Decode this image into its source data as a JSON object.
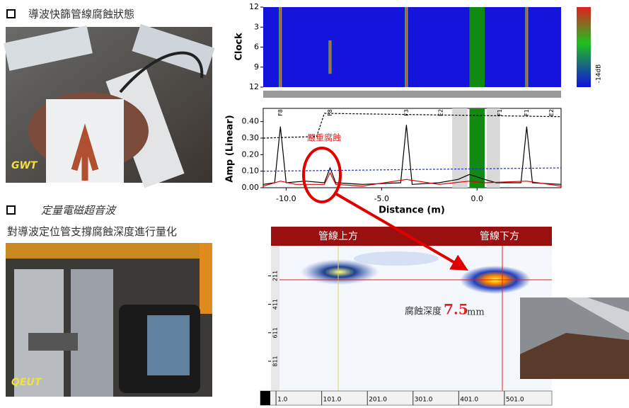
{
  "sections": [
    {
      "title": "導波快篩管線腐蝕狀態",
      "photo_label": "GWT"
    },
    {
      "title": "定量電磁超音波",
      "subtitle": "對導波定位管支撐腐蝕深度進行量化",
      "photo_label": "QEUT"
    }
  ],
  "chart_data": [
    {
      "type": "heatmap",
      "ylabel": "Clock",
      "colorbar_label": "-14dB",
      "xlim": [
        -11.2,
        4.4
      ],
      "ylim": [
        0,
        12
      ],
      "yticks": [
        {
          "value": 0,
          "label": "12"
        },
        3,
        6,
        9,
        12
      ],
      "indications": {
        "x": [
          -10.3,
          -7.7,
          -3.7,
          2.6
        ],
        "clock_from": [
          0,
          5,
          0,
          0
        ],
        "clock_to": [
          12,
          10,
          12,
          12
        ]
      },
      "green_band": [
        -0.4,
        0.4
      ]
    },
    {
      "type": "line",
      "ylabel": "Amp (Linear)",
      "xlabel": "Distance (m)",
      "xlim": [
        -11.2,
        4.4
      ],
      "ylim": [
        0,
        0.48
      ],
      "xticks": [
        {
          "value": -10,
          "label": "-10.0"
        },
        {
          "value": -5,
          "label": "-5.0"
        },
        {
          "value": 0,
          "label": "0.0"
        }
      ],
      "yticks": [
        {
          "value": 0,
          "label": "0.00"
        },
        {
          "value": 0.1,
          "label": "0.10"
        },
        {
          "value": 0.2,
          "label": "0.20"
        },
        {
          "value": 0.3,
          "label": "0.30"
        },
        {
          "value": 0.4,
          "label": "0.40"
        }
      ],
      "green_band": [
        -0.4,
        0.4
      ],
      "gray_bands": [
        [
          -1.3,
          -0.5
        ],
        [
          0.5,
          1.2
        ]
      ],
      "feature_labels": {
        "x": [
          -10.3,
          -7.7,
          -3.7,
          -1.9,
          1.2,
          2.6,
          3.9
        ],
        "labels": [
          "F8",
          "F8",
          "F3",
          "E2",
          "F1",
          "F1",
          "E2"
        ]
      },
      "annotation": {
        "text": "嚴重腐蝕",
        "x": -8.9,
        "y": 0.3
      },
      "series": [
        {
          "color": "#000000",
          "x": [
            -11.2,
            -10.6,
            -10.3,
            -10.0,
            -9.0,
            -8.0,
            -7.7,
            -7.4,
            -6.0,
            -4.0,
            -3.7,
            -3.4,
            -2.0,
            -1.0,
            -0.4,
            0.4,
            1.0,
            2.3,
            2.6,
            2.9,
            4.4
          ],
          "values": [
            0.02,
            0.03,
            0.37,
            0.03,
            0.04,
            0.03,
            0.12,
            0.03,
            0.02,
            0.03,
            0.38,
            0.02,
            0.03,
            0.05,
            0.08,
            0.05,
            0.03,
            0.03,
            0.37,
            0.03,
            0.02
          ]
        },
        {
          "color": "#e00000",
          "x": [
            -11.2,
            -10.3,
            -9.5,
            -8.0,
            -7.7,
            -7.4,
            -6.0,
            -3.7,
            -2.0,
            -0.4,
            0.4,
            2.6,
            4.4
          ],
          "values": [
            0.01,
            0.04,
            0.02,
            0.02,
            0.09,
            0.02,
            0.01,
            0.05,
            0.02,
            0.04,
            0.03,
            0.04,
            0.01
          ]
        },
        {
          "color": "#000000",
          "dash": true,
          "x": [
            -11.2,
            -8.4,
            -8.0,
            4.4
          ],
          "values": [
            0.3,
            0.31,
            0.45,
            0.43
          ]
        },
        {
          "color": "#2030d0",
          "dash": true,
          "x": [
            -11.2,
            4.4
          ],
          "values": [
            0.1,
            0.12
          ]
        }
      ]
    },
    {
      "type": "heatmap",
      "header_left": "管線上方",
      "header_right": "管線下方",
      "depth_label": "腐蝕深度",
      "depth_value": "7.5",
      "depth_unit": "mm",
      "xlim": [
        -10,
        605
      ],
      "ylim": [
        0,
        1020
      ],
      "xticks": [
        {
          "value": 1,
          "label": "1.0"
        },
        {
          "value": 101,
          "label": "101.0"
        },
        {
          "value": 201,
          "label": "201.0"
        },
        {
          "value": 301,
          "label": "301.0"
        },
        {
          "value": 401,
          "label": "401.0"
        },
        {
          "value": 501,
          "label": "501.0"
        }
      ],
      "yticks": [
        211,
        411,
        611,
        811
      ]
    }
  ]
}
